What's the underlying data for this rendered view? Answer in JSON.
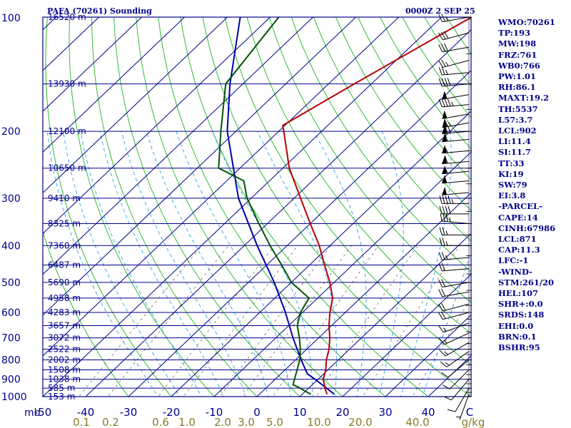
{
  "header": {
    "title": "PAFA (70261) Sounding",
    "date": "0000Z  2 SEP 25"
  },
  "indices": [
    "WMO:70261",
    "TP:193",
    "MW:198",
    "FRZ:761",
    "WB0:766",
    "PW:1.01",
    "RH:86.1",
    "MAXT:19.2",
    "TH:5537",
    "L57:3.7",
    "LCL:902",
    "LI:11.4",
    "SI:11.7",
    "TT:33",
    "KI:19",
    "SW:79",
    "EI:3.8",
    "-PARCEL-",
    "CAPE:14",
    "CINH:67986",
    "LCL:871",
    "CAP:11.3",
    "LFC:-1",
    "-WIND-",
    "STM:261/20",
    "HEL:107",
    "SHR+:0.0",
    "SRDS:148",
    "EHI:0.0",
    "BRN:0.1",
    "BSHR:95"
  ],
  "colors": {
    "frame": "#00008b",
    "isobar": "#00008b",
    "isotherm": "#00008b",
    "dry_adiabat": "#33bb33",
    "moist_adiabat": "#44aaee",
    "mixing_ratio": "#666655",
    "temperature": "#b40000",
    "dewpoint": "#005500",
    "parcel": "#0000aa",
    "wind": "#000000",
    "axis_text": "#00008b",
    "mixing_text": "#8a7a2a"
  },
  "chart_data": {
    "type": "skew-t",
    "ylim": [
      1000,
      100
    ],
    "xlim": [
      -50,
      50
    ],
    "y_scale": "log",
    "pressure_levels": [
      100,
      200,
      300,
      400,
      500,
      600,
      700,
      800,
      900,
      1000
    ],
    "pressure_tick_labels": [
      "100",
      "200",
      "300",
      "400",
      "500",
      "600",
      "700",
      "800",
      "900",
      "1000"
    ],
    "height_levels": [
      {
        "p": 100,
        "label": "16520 m"
      },
      {
        "p": 150,
        "label": "13930 m"
      },
      {
        "p": 200,
        "label": "12100 m"
      },
      {
        "p": 250,
        "label": "10650 m"
      },
      {
        "p": 300,
        "label": "9410 m"
      },
      {
        "p": 350,
        "label": "8325 m"
      },
      {
        "p": 400,
        "label": "7360 m"
      },
      {
        "p": 450,
        "label": "6487 m"
      },
      {
        "p": 500,
        "label": "5690 m"
      },
      {
        "p": 550,
        "label": "4958 m"
      },
      {
        "p": 600,
        "label": "4283 m"
      },
      {
        "p": 650,
        "label": "3657 m"
      },
      {
        "p": 700,
        "label": "3072 m"
      },
      {
        "p": 750,
        "label": "2522 m"
      },
      {
        "p": 800,
        "label": "2002 m"
      },
      {
        "p": 850,
        "label": "1508 m"
      },
      {
        "p": 900,
        "label": "1038 m"
      },
      {
        "p": 950,
        "label": "585 m"
      },
      {
        "p": 1000,
        "label": "153 m"
      }
    ],
    "x_ticks": [
      -50,
      -40,
      -30,
      -20,
      -10,
      0,
      10,
      20,
      30,
      40
    ],
    "x_tick_labels": [
      "-50",
      "-40",
      "-30",
      "-20",
      "-10",
      "0",
      "10",
      "20",
      "30",
      "40"
    ],
    "x_end_label": "C",
    "x_corner_label": "mb",
    "mixing_ratio_labels": [
      "0.1",
      "0.2",
      "0.6",
      "1.0",
      "2.0",
      "3.0",
      "5.0",
      "10.0",
      "20.0",
      "40.0",
      "g/kg"
    ],
    "temperature": [
      {
        "p": 986,
        "t": 15.8
      },
      {
        "p": 950,
        "t": 13.8
      },
      {
        "p": 920,
        "t": 12.3
      },
      {
        "p": 900,
        "t": 11.2
      },
      {
        "p": 850,
        "t": 9.5
      },
      {
        "p": 800,
        "t": 7.2
      },
      {
        "p": 750,
        "t": 5.2
      },
      {
        "p": 700,
        "t": 2.6
      },
      {
        "p": 650,
        "t": -0.6
      },
      {
        "p": 600,
        "t": -3.6
      },
      {
        "p": 550,
        "t": -6.5
      },
      {
        "p": 500,
        "t": -11.0
      },
      {
        "p": 450,
        "t": -16.5
      },
      {
        "p": 400,
        "t": -22.5
      },
      {
        "p": 350,
        "t": -30.0
      },
      {
        "p": 300,
        "t": -38.5
      },
      {
        "p": 250,
        "t": -48.5
      },
      {
        "p": 200,
        "t": -58.8
      },
      {
        "p": 193,
        "t": -60.5
      },
      {
        "p": 150,
        "t": -54.0
      },
      {
        "p": 100,
        "t": -43.0
      }
    ],
    "dewpoint": [
      {
        "p": 986,
        "td": 12.0
      },
      {
        "p": 950,
        "td": 8.0
      },
      {
        "p": 930,
        "td": 5.5
      },
      {
        "p": 900,
        "td": 4.5
      },
      {
        "p": 850,
        "td": 2.8
      },
      {
        "p": 800,
        "td": 1.0
      },
      {
        "p": 750,
        "td": -1.5
      },
      {
        "p": 700,
        "td": -4.5
      },
      {
        "p": 650,
        "td": -8.0
      },
      {
        "p": 600,
        "td": -10.5
      },
      {
        "p": 550,
        "td": -12.0
      },
      {
        "p": 500,
        "td": -20.0
      },
      {
        "p": 450,
        "td": -26.5
      },
      {
        "p": 400,
        "td": -34.0
      },
      {
        "p": 350,
        "td": -42.0
      },
      {
        "p": 300,
        "td": -51.0
      },
      {
        "p": 270,
        "td": -56.0
      },
      {
        "p": 250,
        "td": -65.0
      },
      {
        "p": 200,
        "td": -73.5
      },
      {
        "p": 150,
        "td": -84.0
      },
      {
        "p": 100,
        "td": -88.0
      }
    ],
    "parcel": [
      {
        "p": 986,
        "t": 17.5
      },
      {
        "p": 950,
        "t": 14.2
      },
      {
        "p": 900,
        "t": 9.3
      },
      {
        "p": 871,
        "t": 6.2
      },
      {
        "p": 850,
        "t": 4.8
      },
      {
        "p": 800,
        "t": 1.3
      },
      {
        "p": 700,
        "t": -6.0
      },
      {
        "p": 600,
        "t": -14.0
      },
      {
        "p": 500,
        "t": -24.0
      },
      {
        "p": 400,
        "t": -37.0
      },
      {
        "p": 300,
        "t": -53.0
      },
      {
        "p": 200,
        "t": -72.0
      },
      {
        "p": 150,
        "t": -83.0
      },
      {
        "p": 100,
        "t": -97.0
      }
    ],
    "winds": [
      {
        "p": 100,
        "dir": 260,
        "spd": 25
      },
      {
        "p": 110,
        "dir": 255,
        "spd": 30
      },
      {
        "p": 120,
        "dir": 260,
        "spd": 30
      },
      {
        "p": 130,
        "dir": 255,
        "spd": 25
      },
      {
        "p": 140,
        "dir": 265,
        "spd": 25
      },
      {
        "p": 150,
        "dir": 265,
        "spd": 40
      },
      {
        "p": 160,
        "dir": 260,
        "spd": 50
      },
      {
        "p": 170,
        "dir": 265,
        "spd": 45
      },
      {
        "p": 180,
        "dir": 260,
        "spd": 50
      },
      {
        "p": 190,
        "dir": 260,
        "spd": 65
      },
      {
        "p": 200,
        "dir": 265,
        "spd": 70
      },
      {
        "p": 210,
        "dir": 265,
        "spd": 60
      },
      {
        "p": 225,
        "dir": 265,
        "spd": 55
      },
      {
        "p": 240,
        "dir": 265,
        "spd": 60
      },
      {
        "p": 255,
        "dir": 265,
        "spd": 55
      },
      {
        "p": 270,
        "dir": 265,
        "spd": 50
      },
      {
        "p": 290,
        "dir": 265,
        "spd": 50
      },
      {
        "p": 310,
        "dir": 270,
        "spd": 45
      },
      {
        "p": 330,
        "dir": 270,
        "spd": 40
      },
      {
        "p": 350,
        "dir": 275,
        "spd": 35
      },
      {
        "p": 375,
        "dir": 270,
        "spd": 25
      },
      {
        "p": 400,
        "dir": 270,
        "spd": 25
      },
      {
        "p": 430,
        "dir": 265,
        "spd": 25
      },
      {
        "p": 460,
        "dir": 265,
        "spd": 20
      },
      {
        "p": 500,
        "dir": 260,
        "spd": 20
      },
      {
        "p": 530,
        "dir": 260,
        "spd": 20
      },
      {
        "p": 570,
        "dir": 255,
        "spd": 20
      },
      {
        "p": 600,
        "dir": 255,
        "spd": 20
      },
      {
        "p": 640,
        "dir": 250,
        "spd": 15
      },
      {
        "p": 680,
        "dir": 245,
        "spd": 15
      },
      {
        "p": 720,
        "dir": 240,
        "spd": 15
      },
      {
        "p": 760,
        "dir": 235,
        "spd": 15
      },
      {
        "p": 800,
        "dir": 230,
        "spd": 10
      },
      {
        "p": 850,
        "dir": 225,
        "spd": 10
      },
      {
        "p": 900,
        "dir": 220,
        "spd": 10
      },
      {
        "p": 950,
        "dir": 210,
        "spd": 10
      },
      {
        "p": 986,
        "dir": 200,
        "spd": 5
      }
    ],
    "grid": true
  }
}
